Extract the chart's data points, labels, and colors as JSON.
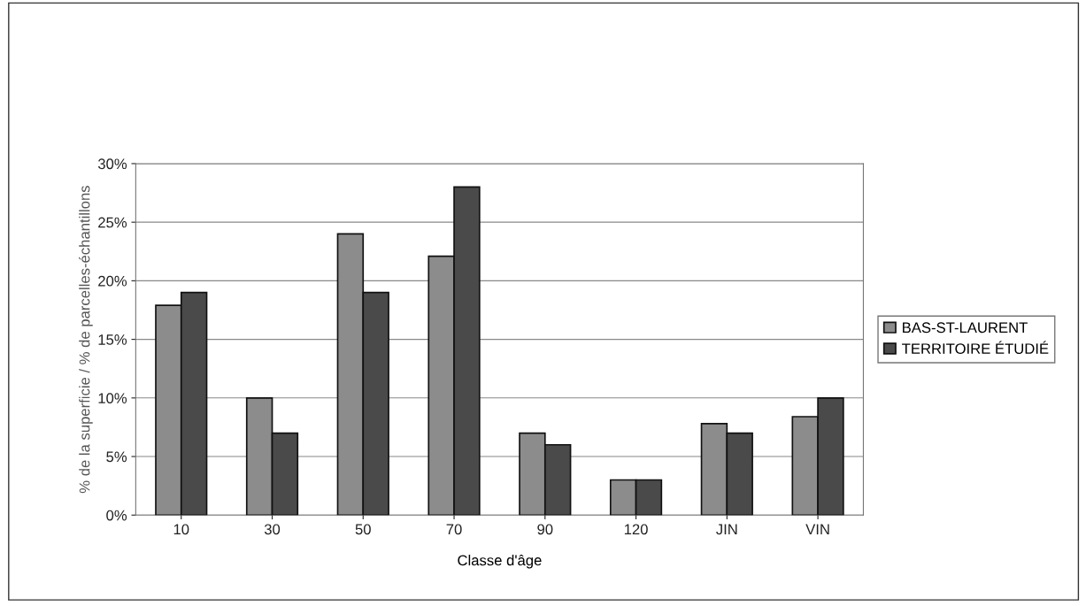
{
  "chart_data": {
    "type": "bar",
    "xlabel": "Classe d'âge",
    "ylabel": "% de la superficie / % de parcelles-échantillons",
    "categories": [
      "10",
      "30",
      "50",
      "70",
      "90",
      "120",
      "JIN",
      "VIN"
    ],
    "series": [
      {
        "name": "BAS-ST-LAURENT",
        "color": "#8c8c8c",
        "values": [
          17.9,
          10,
          24,
          22.1,
          7,
          3,
          7.8,
          8.4
        ]
      },
      {
        "name": "TERRITOIRE ÉTUDIÉ",
        "color": "#4a4a4a",
        "values": [
          19,
          7,
          19,
          28,
          6,
          3,
          7,
          10
        ]
      }
    ],
    "ylim": [
      0,
      30
    ],
    "yticks": [
      {
        "value": 0,
        "label": "0%"
      },
      {
        "value": 5,
        "label": "5%"
      },
      {
        "value": 10,
        "label": "10%"
      },
      {
        "value": 15,
        "label": "15%"
      },
      {
        "value": 20,
        "label": "20%"
      },
      {
        "value": 25,
        "label": "25%"
      },
      {
        "value": 30,
        "label": "30%"
      }
    ],
    "grid": "y",
    "legend": "right"
  }
}
